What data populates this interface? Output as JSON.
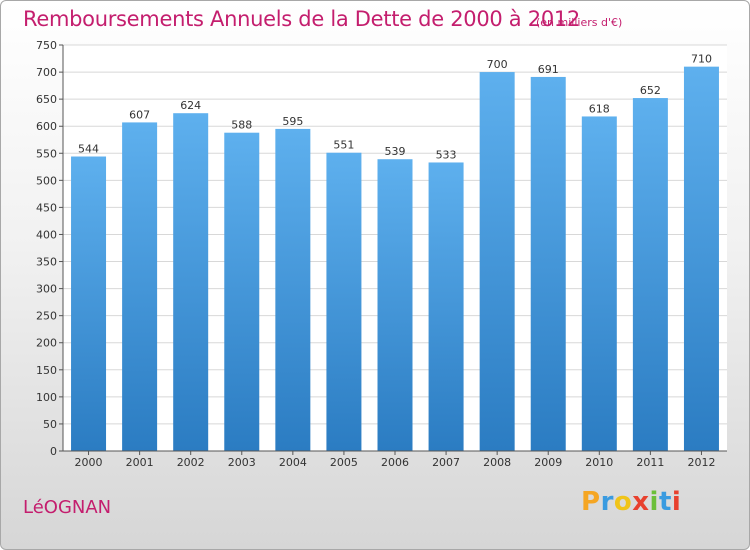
{
  "title": "Remboursements Annuels de la Dette de 2000 à 2012",
  "title_unit": "(en milliers d'€)",
  "town": "LéOGNAN",
  "logo": {
    "letters": [
      "P",
      "r",
      "o",
      "x",
      "i",
      "t",
      "i"
    ],
    "colors": [
      "#f5a623",
      "#3a9be0",
      "#f0c419",
      "#e8412e",
      "#6cbf3a",
      "#3a9be0",
      "#e8412e"
    ]
  },
  "colors": {
    "bar": "#5aabe8",
    "bar_dark": "#2a7cc0",
    "title": "#c41e6e"
  },
  "chart_data": {
    "type": "bar",
    "categories": [
      "2000",
      "2001",
      "2002",
      "2003",
      "2004",
      "2005",
      "2006",
      "2007",
      "2008",
      "2009",
      "2010",
      "2011",
      "2012"
    ],
    "values": [
      544,
      607,
      624,
      588,
      595,
      551,
      539,
      533,
      700,
      691,
      618,
      652,
      710
    ],
    "ylim": [
      0,
      750
    ],
    "yticks": [
      0,
      50,
      100,
      150,
      200,
      250,
      300,
      350,
      400,
      450,
      500,
      550,
      600,
      650,
      700,
      750
    ],
    "grid": true,
    "xlabel": "",
    "ylabel": ""
  }
}
